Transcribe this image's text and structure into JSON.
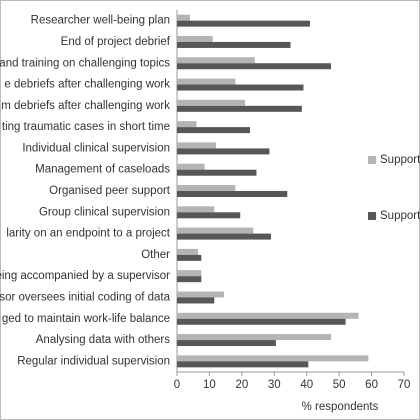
{
  "chart_data": {
    "type": "barh",
    "x_label": "% respondents",
    "categories": [
      "Researcher well-being plan",
      "End of project debrief",
      "and training on challenging topics",
      "e debriefs after challenging work",
      "m debriefs after challenging work",
      "ting traumatic cases in short time",
      "Individual clinical supervision",
      "Management of caseloads",
      "Organised peer support",
      "Group clinical supervision",
      "larity on an endpoint to a project",
      "Other",
      "eing accompanied by a supervisor",
      "sor oversees initial coding of data",
      "ged to maintain work-life balance",
      "Analysing data with others",
      "Regular individual supervision"
    ],
    "series": [
      {
        "name": "Support",
        "color": "#b4b4b4",
        "values": [
          4,
          11,
          24,
          18,
          21,
          6,
          12,
          8.5,
          18,
          11.5,
          23.5,
          6.5,
          7.5,
          14.5,
          56,
          47.5,
          59
        ]
      },
      {
        "name": "Support",
        "color": "#575757",
        "values": [
          41,
          35,
          47.5,
          39,
          38.5,
          22.5,
          28.5,
          24.5,
          34,
          19.5,
          29,
          7.5,
          7.5,
          11.5,
          52,
          30.5,
          40.5
        ]
      }
    ],
    "xlim": [
      0,
      70
    ],
    "xticks": [
      0,
      10,
      20,
      30,
      40,
      50,
      60,
      70
    ],
    "grid": false
  }
}
